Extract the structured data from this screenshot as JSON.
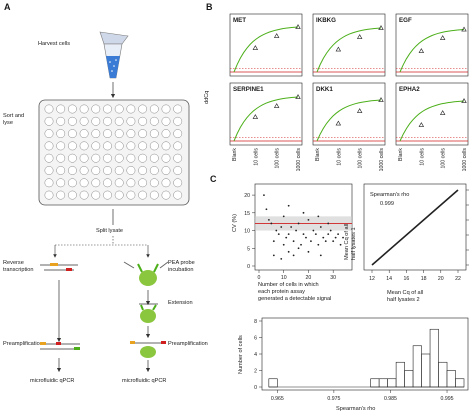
{
  "panels": {
    "a": "A",
    "b": "B",
    "c": "C"
  },
  "workflow": {
    "harvest": "Harvest cells",
    "sort": "Sort and lyse",
    "split": "Split lysate",
    "rt": "Reverse transcription",
    "pea": "PEA probe incubation",
    "ext": "Extension",
    "preamp_left": "Preamplification",
    "preamp_right": "Preamplification",
    "qpcr_left": "microfluidic qPCR",
    "qpcr_right": "microfluidic qPCR"
  },
  "colors": {
    "curve": "#4caf1a",
    "red_line": "#d11f1f",
    "pea_green": "#8bc63f",
    "tube_blue": "#3a7bd5"
  },
  "chart_data": [
    {
      "type": "line",
      "ylabel": "ddCq",
      "categories": [
        "Blank",
        "10 cells",
        "100 cells",
        "1000 cells"
      ],
      "panels": [
        {
          "name": "MET",
          "y": [
            0,
            4.8,
            7.2,
            9.0
          ]
        },
        {
          "name": "IKBKG",
          "y": [
            0,
            4.5,
            7.0,
            8.8
          ]
        },
        {
          "name": "EGF",
          "y": [
            0,
            4.2,
            6.8,
            8.5
          ]
        },
        {
          "name": "SERPINE1",
          "y": [
            0,
            4.8,
            7.0,
            8.8
          ]
        },
        {
          "name": "DKK1",
          "y": [
            0,
            3.5,
            6.0,
            8.2
          ]
        },
        {
          "name": "EPHA2",
          "y": [
            0,
            3.2,
            5.6,
            8.0
          ]
        }
      ]
    },
    {
      "type": "scatter",
      "xlabel": "Number of cells in which each protein assay generated a detectable signal",
      "ylabel": "CV (%)",
      "yticks": [
        "0",
        "5",
        "10",
        "15",
        "20"
      ],
      "xticks": [
        "0",
        "10",
        "20",
        "30"
      ],
      "xlim": [
        0,
        36
      ],
      "ylim": [
        0,
        22
      ],
      "hline": 12,
      "points": [
        [
          2,
          20
        ],
        [
          3,
          16
        ],
        [
          4,
          13
        ],
        [
          5,
          12
        ],
        [
          6,
          7
        ],
        [
          7,
          10
        ],
        [
          8,
          9
        ],
        [
          9,
          11
        ],
        [
          10,
          6
        ],
        [
          10,
          14
        ],
        [
          11,
          8
        ],
        [
          12,
          9
        ],
        [
          12,
          4
        ],
        [
          13,
          11
        ],
        [
          14,
          7
        ],
        [
          15,
          10
        ],
        [
          16,
          12
        ],
        [
          17,
          6
        ],
        [
          18,
          9
        ],
        [
          19,
          8
        ],
        [
          20,
          13
        ],
        [
          21,
          7
        ],
        [
          22,
          10
        ],
        [
          23,
          9
        ],
        [
          24,
          6
        ],
        [
          25,
          11
        ],
        [
          26,
          8
        ],
        [
          27,
          7
        ],
        [
          28,
          9
        ],
        [
          29,
          10
        ],
        [
          30,
          7
        ],
        [
          31,
          8
        ],
        [
          32,
          9
        ],
        [
          33,
          6
        ],
        [
          34,
          8
        ],
        [
          6,
          3
        ],
        [
          9,
          2
        ],
        [
          14,
          3
        ],
        [
          20,
          4
        ],
        [
          25,
          3
        ],
        [
          12,
          17
        ],
        [
          18,
          15
        ],
        [
          24,
          14
        ],
        [
          28,
          12
        ],
        [
          16,
          5
        ]
      ]
    },
    {
      "type": "scatter",
      "title": "Spearman's rho",
      "rho": "0.999",
      "xlabel": "Mean Cq of all half lysates 2",
      "ylabel": "Mean Cq of all half lysates 1",
      "xticks": [
        "12",
        "14",
        "16",
        "18",
        "20",
        "22"
      ],
      "yticks": [
        "12",
        "14",
        "16",
        "18",
        "20",
        "22"
      ],
      "xlim": [
        12,
        22
      ],
      "ylim": [
        12,
        22
      ]
    },
    {
      "type": "bar",
      "xlabel": "Spearman's rho",
      "ylabel": "Number of cells",
      "xticks": [
        "0.965",
        "0.975",
        "0.985",
        "0.995"
      ],
      "yticks": [
        "0",
        "2",
        "4",
        "6",
        "8"
      ],
      "xlim": [
        0.963,
        0.998
      ],
      "ylim": [
        0,
        8
      ],
      "bins": [
        [
          0.9635,
          1
        ],
        [
          0.965,
          0
        ],
        [
          0.9665,
          0
        ],
        [
          0.968,
          0
        ],
        [
          0.9695,
          0
        ],
        [
          0.971,
          0
        ],
        [
          0.9725,
          0
        ],
        [
          0.974,
          0
        ],
        [
          0.9755,
          0
        ],
        [
          0.977,
          0
        ],
        [
          0.9785,
          0
        ],
        [
          0.98,
          0
        ],
        [
          0.9815,
          1
        ],
        [
          0.983,
          1
        ],
        [
          0.9845,
          1
        ],
        [
          0.986,
          3
        ],
        [
          0.9875,
          2
        ],
        [
          0.989,
          5
        ],
        [
          0.9905,
          4
        ],
        [
          0.992,
          7
        ],
        [
          0.9935,
          3
        ],
        [
          0.995,
          2
        ],
        [
          0.9965,
          1
        ]
      ]
    }
  ]
}
